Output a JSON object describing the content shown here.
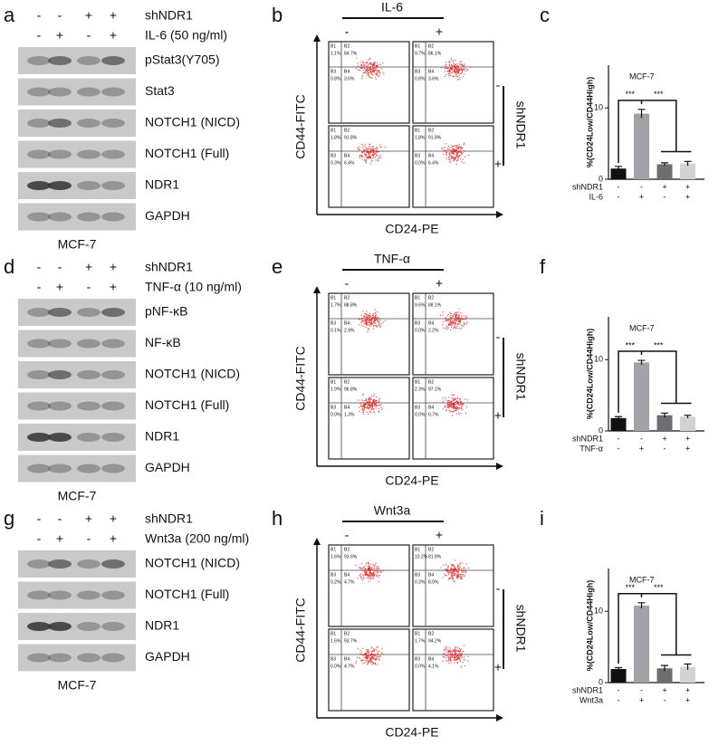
{
  "panels": [
    {
      "blot": {
        "letter": "a",
        "conditions": [
          {
            "name": "shNDR1",
            "signs": [
              "-",
              "-",
              "+",
              "+"
            ]
          },
          {
            "name": "IL-6 (50 ng/ml)",
            "signs": [
              "-",
              "+",
              "-",
              "+"
            ]
          }
        ],
        "bands": [
          "pStat3(Y705)",
          "Stat3",
          "NOTCH1 (NICD)",
          "NOTCH1 (Full)",
          "NDR1",
          "GAPDH"
        ],
        "cell_line": "MCF-7"
      },
      "flow": {
        "letter": "b",
        "treatment": "IL-6",
        "signs": [
          "-",
          "+"
        ],
        "y_label": "CD44-FITC",
        "x_label": "CD24-PE",
        "group_label": "shNDR1",
        "group_signs": [
          "-",
          "+"
        ],
        "quadrant_names": [
          "B1",
          "B2",
          "B3",
          "B4"
        ],
        "plots": [
          [
            "1.1%",
            "84.7%",
            "0.8%",
            "3.6%"
          ],
          [
            "9.7%",
            "86.1%",
            "0.8%",
            "3.6%"
          ],
          [
            "1.8%",
            "91.8%",
            "0.3%",
            "6.4%"
          ],
          [
            "1.8%",
            "91.8%",
            "0.0%",
            "6.4%"
          ]
        ]
      }
    },
    {
      "blot": {
        "letter": "d",
        "conditions": [
          {
            "name": "shNDR1",
            "signs": [
              "-",
              "-",
              "+",
              "+"
            ]
          },
          {
            "name": "TNF-α (10 ng/ml)",
            "signs": [
              "-",
              "+",
              "-",
              "+"
            ]
          }
        ],
        "bands": [
          "pNF-κB",
          "NF-κB",
          "NOTCH1 (NICD)",
          "NOTCH1 (Full)",
          "NDR1",
          "GAPDH"
        ],
        "cell_line": "MCF-7"
      },
      "flow": {
        "letter": "e",
        "treatment": "TNF-α",
        "signs": [
          "-",
          "+"
        ],
        "y_label": "CD44-FITC",
        "x_label": "CD24-PE",
        "group_label": "shNDR1",
        "group_signs": [
          "-",
          "+"
        ],
        "quadrant_names": [
          "B1",
          "B2",
          "B3",
          "B4"
        ],
        "plots": [
          [
            "1.7%",
            "88.8%",
            "0.1%",
            "2.9%"
          ],
          [
            "9.6%",
            "88.1%",
            "0.0%",
            "2.2%"
          ],
          [
            "1.9%",
            "96.8%",
            "0.0%",
            "1.3%"
          ],
          [
            "2.3%",
            "97.1%",
            "0.0%",
            "0.7%"
          ]
        ]
      }
    },
    {
      "blot": {
        "letter": "g",
        "conditions": [
          {
            "name": "shNDR1",
            "signs": [
              "-",
              "-",
              "+",
              "+"
            ]
          },
          {
            "name": "Wnt3a (200 ng/ml)",
            "signs": [
              "-",
              "+",
              "-",
              "+"
            ]
          }
        ],
        "bands": [
          "NOTCH1 (NICD)",
          "NOTCH1 (Full)",
          "NDR1",
          "GAPDH"
        ],
        "cell_line": "MCF-7"
      },
      "flow": {
        "letter": "h",
        "treatment": "Wnt3a",
        "signs": [
          "-",
          "+"
        ],
        "y_label": "CD44-FITC",
        "x_label": "CD24-PE",
        "group_label": "shNDR1",
        "group_signs": [
          "-",
          "+"
        ],
        "quadrant_names": [
          "B1",
          "B2",
          "B3",
          "B4"
        ],
        "plots": [
          [
            "1.6%",
            "93.6%",
            "0.2%",
            "4.7%"
          ],
          [
            "10.2%",
            "81.8%",
            "0.3%",
            "8.0%"
          ],
          [
            "1.6%",
            "93.7%",
            "0.0%",
            "4.7%"
          ],
          [
            "1.7%",
            "94.2%",
            "0.0%",
            "4.1%"
          ]
        ]
      }
    }
  ],
  "chart_data": [
    {
      "type": "bar",
      "letter": "c",
      "title": "MCF-7",
      "y_label": "%(CD24Low/CD44High)",
      "values": [
        1.5,
        9.2,
        2.1,
        2.2
      ],
      "errors": [
        0.3,
        0.6,
        0.2,
        0.3
      ],
      "colors": [
        "#111111",
        "#a2a2a6",
        "#6e6e72",
        "#d2d2d2"
      ],
      "ylim": [
        0,
        16
      ],
      "yticks": [
        0,
        10
      ],
      "conditions": [
        {
          "name": "shNDR1",
          "signs": [
            "-",
            "-",
            "+",
            "+"
          ]
        },
        {
          "name": "IL-6",
          "signs": [
            "-",
            "+",
            "-",
            "+"
          ]
        }
      ],
      "annotations": [
        "***",
        "***"
      ]
    },
    {
      "type": "bar",
      "letter": "f",
      "title": "MCF-7",
      "y_label": "%(CD24Low/CD44High)",
      "values": [
        1.8,
        9.6,
        2.2,
        2.0
      ],
      "errors": [
        0.2,
        0.3,
        0.3,
        0.2
      ],
      "colors": [
        "#111111",
        "#a2a2a6",
        "#6e6e72",
        "#d2d2d2"
      ],
      "ylim": [
        0,
        16
      ],
      "yticks": [
        0,
        10
      ],
      "conditions": [
        {
          "name": "shNDR1",
          "signs": [
            "-",
            "-",
            "+",
            "+"
          ]
        },
        {
          "name": "TNF-α",
          "signs": [
            "-",
            "+",
            "-",
            "+"
          ]
        }
      ],
      "annotations": [
        "***",
        "***"
      ]
    },
    {
      "type": "bar",
      "letter": "i",
      "title": "MCF-7",
      "y_label": "%(CD24Low/CD44High)",
      "values": [
        1.9,
        10.8,
        2.0,
        2.2
      ],
      "errors": [
        0.2,
        0.4,
        0.4,
        0.4
      ],
      "colors": [
        "#111111",
        "#a2a2a6",
        "#6e6e72",
        "#d2d2d2"
      ],
      "ylim": [
        0,
        16
      ],
      "yticks": [
        0,
        10
      ],
      "conditions": [
        {
          "name": "shNDR1",
          "signs": [
            "-",
            "-",
            "+",
            "+"
          ]
        },
        {
          "name": "Wnt3a",
          "signs": [
            "-",
            "+",
            "-",
            "+"
          ]
        }
      ],
      "annotations": [
        "***",
        "***"
      ]
    }
  ]
}
